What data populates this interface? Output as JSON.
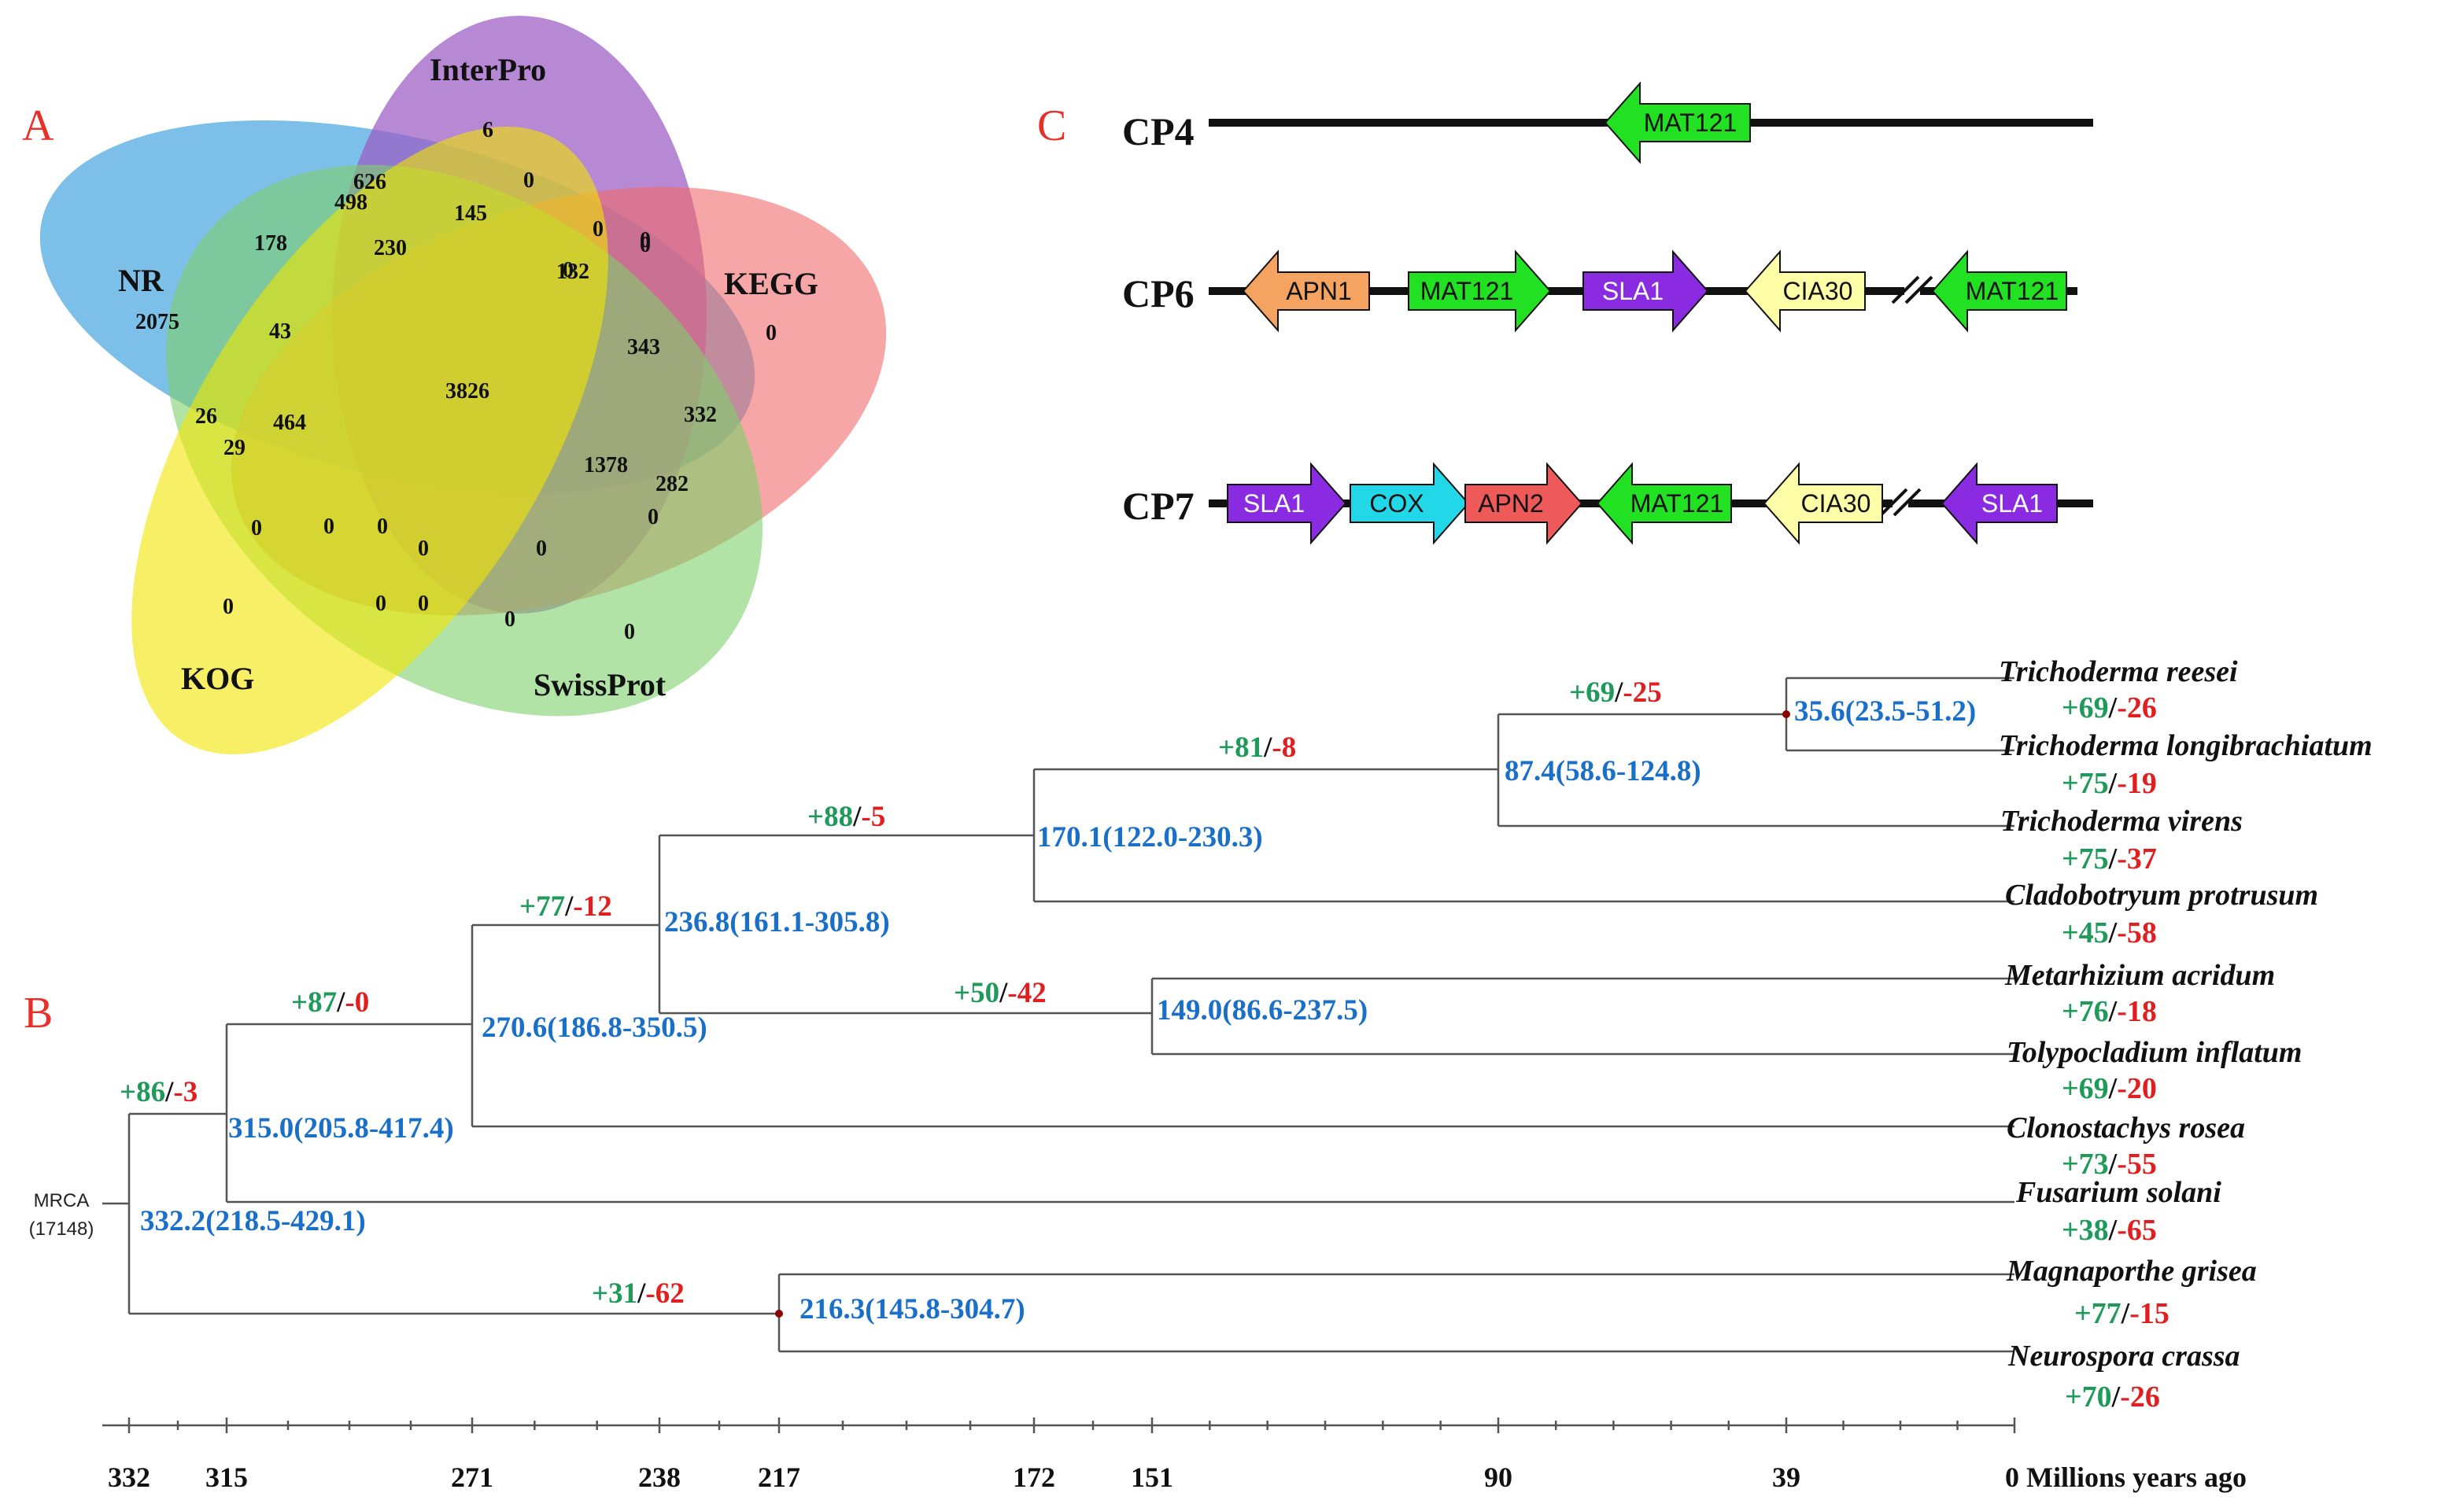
{
  "colors": {
    "panel_label": "#e8302a",
    "blue": "#1a6fc9",
    "green": "#1f9a5a",
    "red": "#e02020",
    "line": "#555555",
    "black": "#111111",
    "venn_nr": "#4aa8e2",
    "venn_interpro": "#9b5cc4",
    "venn_kegg": "#f06a6a",
    "venn_kog": "#f2e600",
    "venn_swissprot": "#7fd16a",
    "gene_apn1": "#f4a460",
    "gene_mat121": "#22e022",
    "gene_sla1": "#8a2be2",
    "gene_cia30": "#ffffa8",
    "gene_cox": "#22d8e8",
    "gene_apn2": "#ee5a5a"
  },
  "panels": {
    "a": "A",
    "b": "B",
    "c": "C"
  },
  "venn": {
    "sets": {
      "nr": "NR",
      "interpro": "InterPro",
      "kegg": "KEGG",
      "kog": "KOG",
      "swissprot": "SwissProt"
    },
    "counts": [
      "2075",
      "6",
      "0",
      "0",
      "0",
      "626",
      "498",
      "178",
      "145",
      "230",
      "0",
      "0",
      "0",
      "132",
      "3826",
      "343",
      "332",
      "43",
      "26",
      "464",
      "29",
      "1378",
      "282",
      "0",
      "0",
      "0",
      "0",
      "0",
      "0",
      "0",
      "0",
      "0",
      "0",
      "0"
    ]
  },
  "clusters": {
    "cp4": {
      "label": "CP4",
      "genes": [
        "MAT121"
      ]
    },
    "cp6": {
      "label": "CP6",
      "genes": [
        "APN1",
        "MAT121",
        "SLA1",
        "CIA30",
        "MAT121"
      ]
    },
    "cp7": {
      "label": "CP7",
      "genes": [
        "SLA1",
        "COX",
        "APN2",
        "MAT121",
        "CIA30",
        "SLA1"
      ]
    }
  },
  "tree": {
    "root": {
      "line1": "MRCA",
      "line2": "(17148)"
    },
    "species": [
      {
        "name": "Trichoderma reesei",
        "gain": "+69",
        "loss": "-26"
      },
      {
        "name": "Trichoderma longibrachiatum",
        "gain": "+75",
        "loss": "-19"
      },
      {
        "name": "Trichoderma virens",
        "gain": "+75",
        "loss": "-37"
      },
      {
        "name": "Cladobotryum  protrusum",
        "gain": "+45",
        "loss": "-58"
      },
      {
        "name": "Metarhizium acridum",
        "gain": "+76",
        "loss": "-18"
      },
      {
        "name": "Tolypocladium inflatum",
        "gain": "+69",
        "loss": "-20"
      },
      {
        "name": "Clonostachys rosea",
        "gain": "+73",
        "loss": "-55"
      },
      {
        "name": "Fusarium solani",
        "gain": "+38",
        "loss": "-65"
      },
      {
        "name": "Magnaporthe grisea",
        "gain": "+77",
        "loss": "-15"
      },
      {
        "name": "Neurospora crassa",
        "gain": "+70",
        "loss": "-26"
      }
    ],
    "nodes": [
      {
        "age": "332.2(218.5-429.1)",
        "gain": "+86",
        "loss": "-3"
      },
      {
        "age": "315.0(205.8-417.4)",
        "gain": "+87",
        "loss": "-0"
      },
      {
        "age": "270.6(186.8-350.5)",
        "gain": "+77",
        "loss": "-12"
      },
      {
        "age": "236.8(161.1-305.8)",
        "gain": "+88",
        "loss": "-5"
      },
      {
        "age": "170.1(122.0-230.3)",
        "gain": "+81",
        "loss": "-8"
      },
      {
        "age": "87.4(58.6-124.8)",
        "gain": "+69",
        "loss": "-25"
      },
      {
        "age": "35.6(23.5-51.2)"
      },
      {
        "age": "149.0(86.6-237.5)",
        "gain": "+50",
        "loss": "-42"
      },
      {
        "age": "216.3(145.8-304.7)",
        "gain": "+31",
        "loss": "-62"
      }
    ],
    "axis": {
      "ticks": [
        "332",
        "315",
        "271",
        "238",
        "217",
        "172",
        "151",
        "90",
        "39",
        "0 Millions years ago"
      ]
    }
  }
}
